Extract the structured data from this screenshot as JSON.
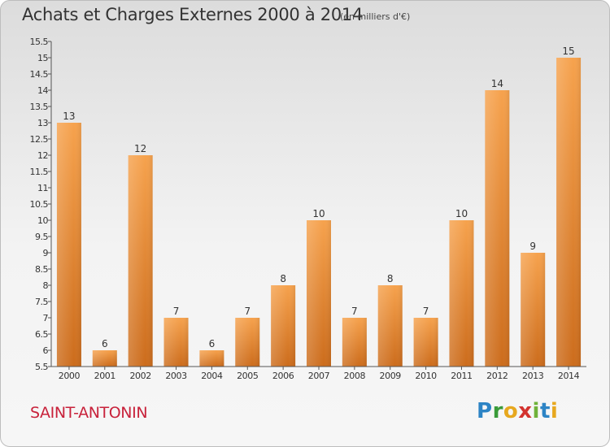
{
  "header": {
    "title": "Achats et Charges Externes 2000 à 2014",
    "subtitle": "(en milliers d'€)"
  },
  "footer": {
    "commune": "SAINT-ANTONIN",
    "brand": "Proxiti"
  },
  "chart_data": {
    "type": "bar",
    "title": "Achats et Charges Externes 2000 à 2014",
    "subtitle": "(en milliers d'€)",
    "categories": [
      "2000",
      "2001",
      "2002",
      "2003",
      "2004",
      "2005",
      "2006",
      "2007",
      "2008",
      "2009",
      "2010",
      "2011",
      "2012",
      "2013",
      "2014"
    ],
    "values": [
      13,
      6,
      12,
      7,
      6,
      7,
      8,
      10,
      7,
      8,
      7,
      10,
      14,
      9,
      15
    ],
    "data_labels": [
      "13",
      "6",
      "12",
      "7",
      "6",
      "7",
      "8",
      "10",
      "7",
      "8",
      "7",
      "10",
      "14",
      "9",
      "15"
    ],
    "ylim": [
      5.5,
      15.5
    ],
    "yticks": [
      "5.5",
      "6",
      "6.5",
      "7",
      "7.5",
      "8",
      "8.5",
      "9",
      "9.5",
      "10",
      "10.5",
      "11",
      "11.5",
      "12",
      "12.5",
      "13",
      "13.5",
      "14",
      "14.5",
      "15",
      "15.5"
    ],
    "grid": false,
    "colors": {
      "bar_top": "#f6a24d",
      "bar_bottom": "#cc6c1c",
      "axis": "#555555",
      "text": "#333333"
    }
  }
}
